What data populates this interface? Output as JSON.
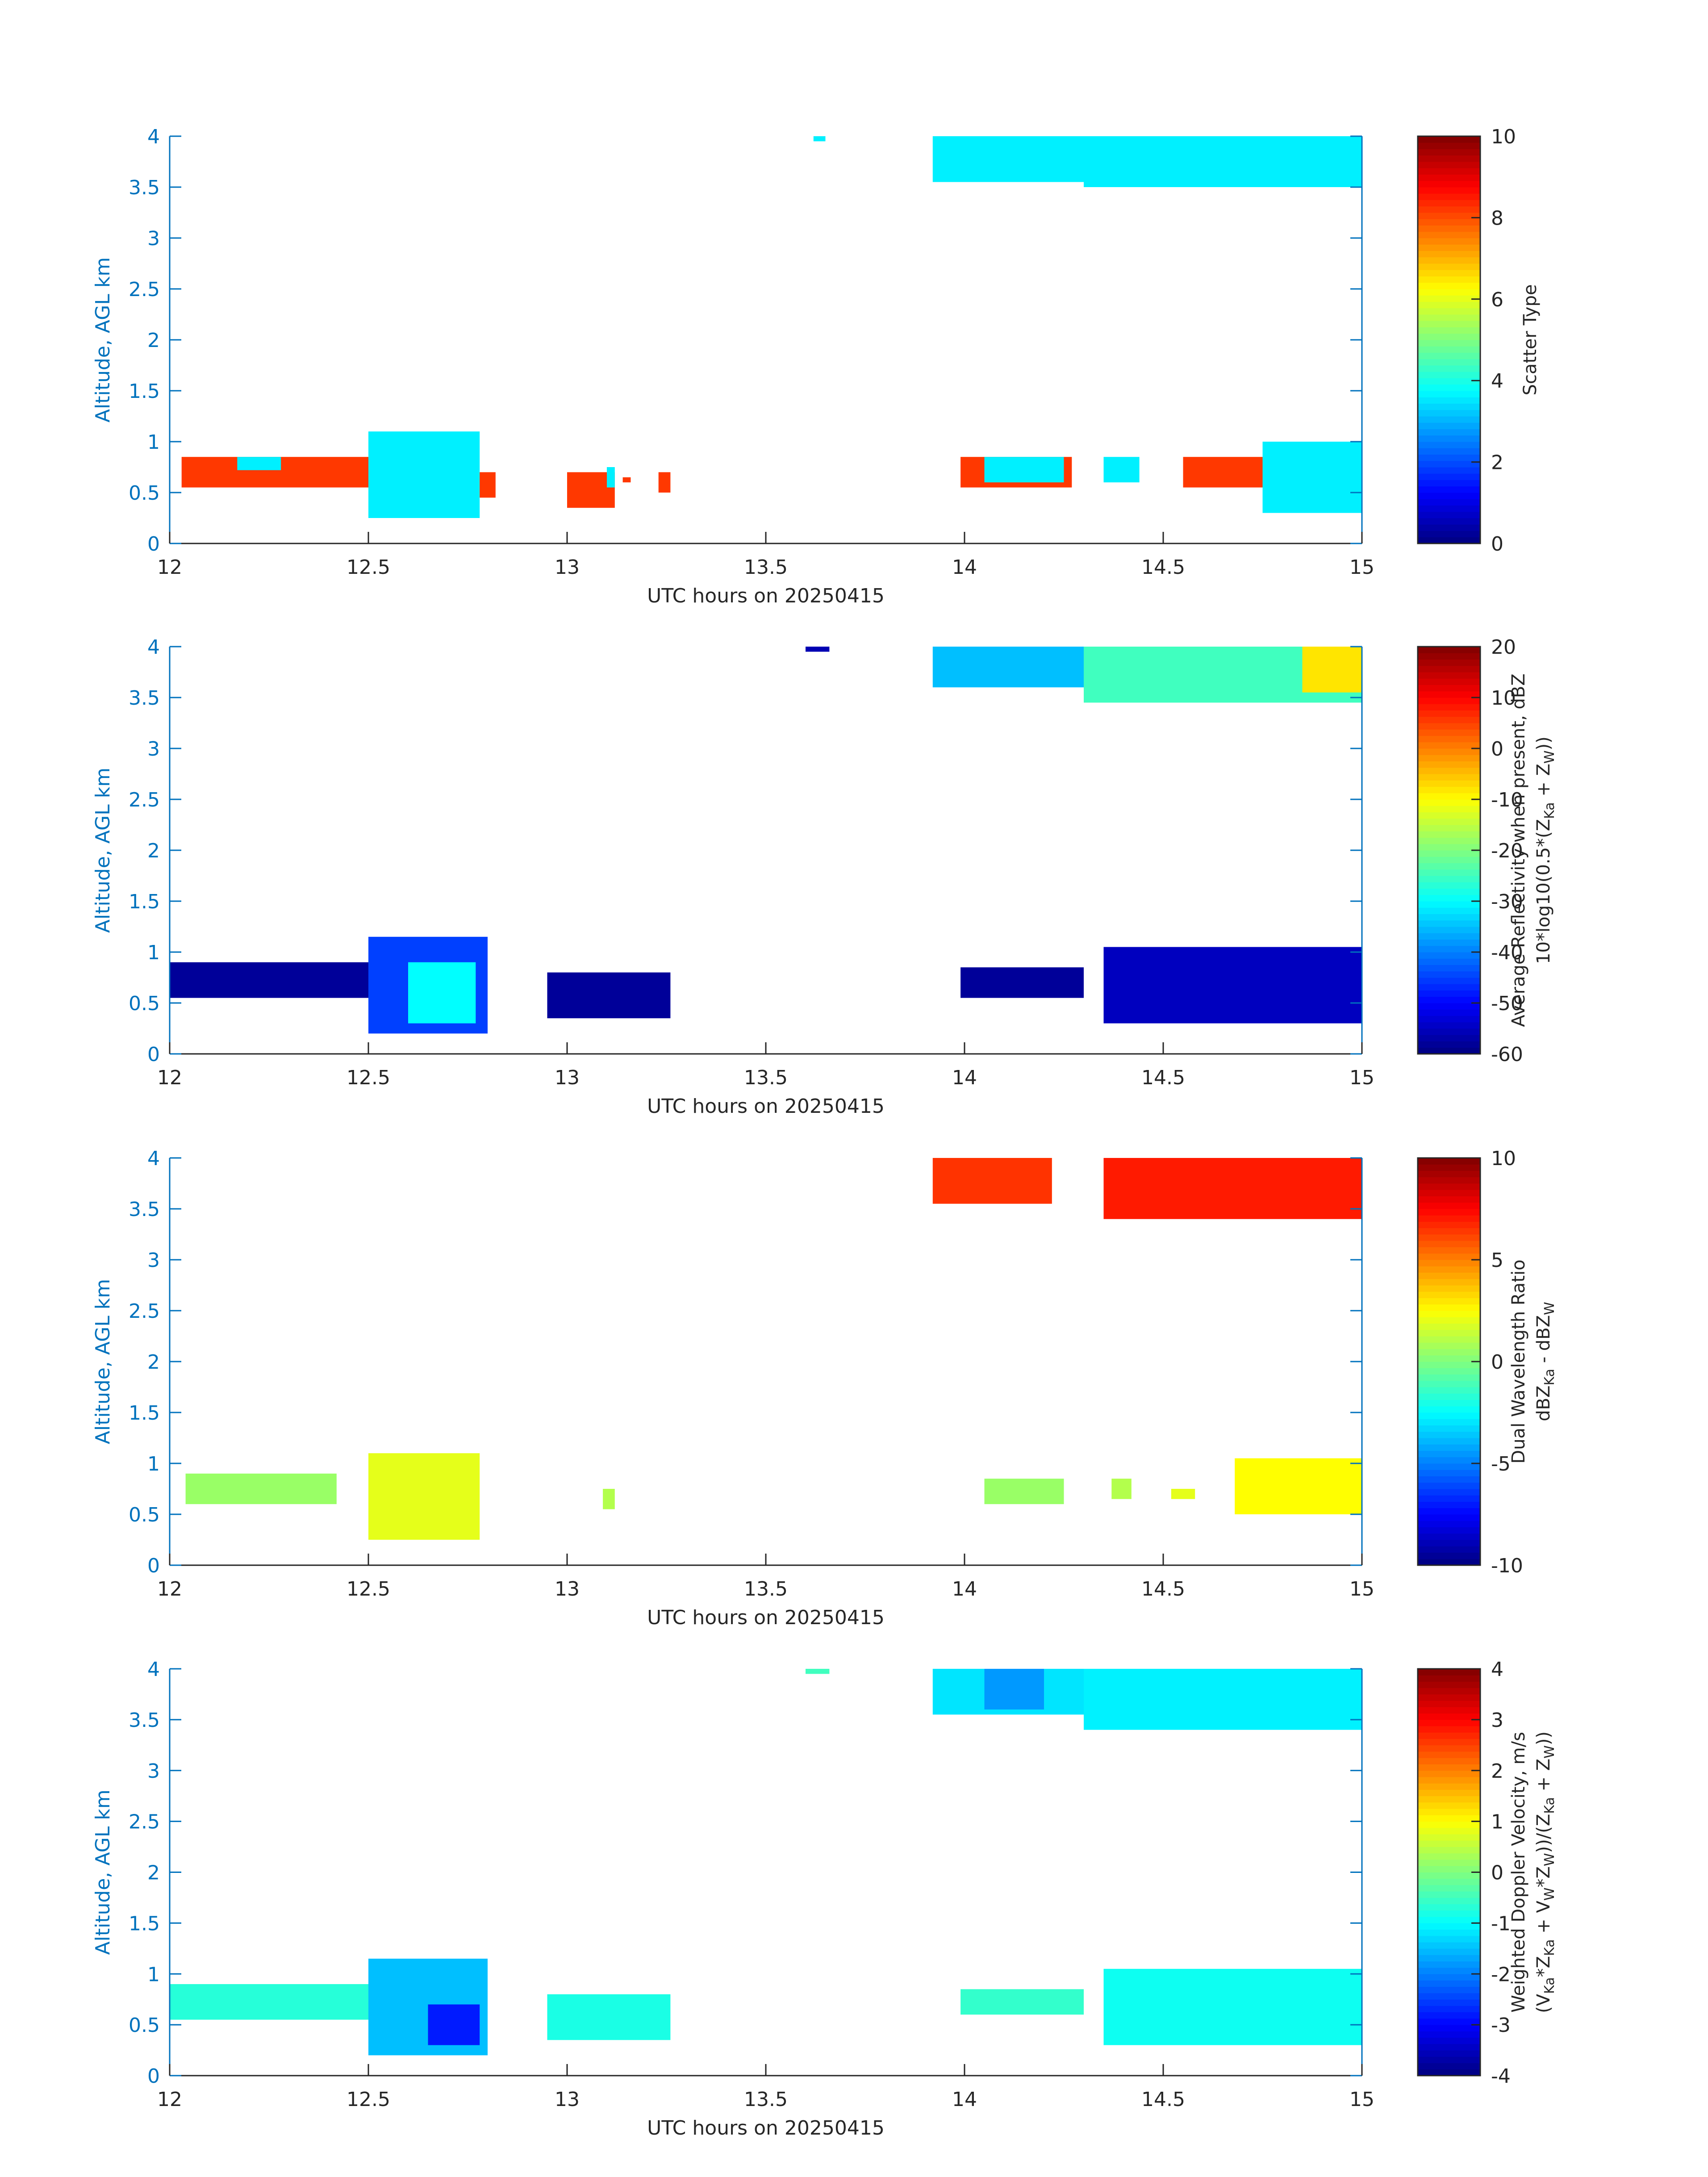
{
  "chart_data": [
    {
      "type": "heatmap",
      "xlabel": "UTC hours on 20250415",
      "ylabel": "Altitude, AGL km",
      "xlim": [
        12,
        15
      ],
      "ylim": [
        0,
        4
      ],
      "xticks": [
        12,
        12.5,
        13,
        13.5,
        14,
        14.5,
        15
      ],
      "yticks": [
        0,
        0.5,
        1,
        1.5,
        2,
        2.5,
        3,
        3.5,
        4
      ],
      "colorbar": {
        "label_lines": [
          "Scatter Type"
        ],
        "range": [
          0,
          10
        ],
        "ticks": [
          0,
          2,
          4,
          6,
          8,
          10
        ]
      },
      "colormap": "jet",
      "regions": [
        {
          "x": [
            13.62,
            13.65
          ],
          "y": [
            3.95,
            4.0
          ],
          "value": 3.6
        },
        {
          "x": [
            13.92,
            14.3
          ],
          "y": [
            3.55,
            4.0
          ],
          "value": 3.6
        },
        {
          "x": [
            14.3,
            15.0
          ],
          "y": [
            3.5,
            4.0
          ],
          "value": 3.6
        },
        {
          "x": [
            12.03,
            12.5
          ],
          "y": [
            0.55,
            0.85
          ],
          "value": 8.2
        },
        {
          "x": [
            12.17,
            12.28
          ],
          "y": [
            0.72,
            0.85
          ],
          "value": 3.6
        },
        {
          "x": [
            12.5,
            12.78
          ],
          "y": [
            0.25,
            1.1
          ],
          "value": 3.6
        },
        {
          "x": [
            12.78,
            12.82
          ],
          "y": [
            0.45,
            0.7
          ],
          "value": 8.2
        },
        {
          "x": [
            13.0,
            13.12
          ],
          "y": [
            0.35,
            0.7
          ],
          "value": 8.2
        },
        {
          "x": [
            13.1,
            13.12
          ],
          "y": [
            0.55,
            0.75
          ],
          "value": 3.6
        },
        {
          "x": [
            13.14,
            13.16
          ],
          "y": [
            0.6,
            0.65
          ],
          "value": 8.2
        },
        {
          "x": [
            13.23,
            13.26
          ],
          "y": [
            0.5,
            0.7
          ],
          "value": 8.2
        },
        {
          "x": [
            13.99,
            14.27
          ],
          "y": [
            0.55,
            0.85
          ],
          "value": 8.2
        },
        {
          "x": [
            14.05,
            14.25
          ],
          "y": [
            0.6,
            0.85
          ],
          "value": 3.6
        },
        {
          "x": [
            14.35,
            14.44
          ],
          "y": [
            0.6,
            0.85
          ],
          "value": 3.6
        },
        {
          "x": [
            14.55,
            14.75
          ],
          "y": [
            0.55,
            0.85
          ],
          "value": 8.2
        },
        {
          "x": [
            14.75,
            15.0
          ],
          "y": [
            0.3,
            1.0
          ],
          "value": 3.6
        }
      ]
    },
    {
      "type": "heatmap",
      "xlabel": "UTC hours on 20250415",
      "ylabel": "Altitude, AGL km",
      "xlim": [
        12,
        15
      ],
      "ylim": [
        0,
        4
      ],
      "xticks": [
        12,
        12.5,
        13,
        13.5,
        14,
        14.5,
        15
      ],
      "yticks": [
        0,
        0.5,
        1,
        1.5,
        2,
        2.5,
        3,
        3.5,
        4
      ],
      "colorbar": {
        "label_lines": [
          "Average Reflectivity when present, dBZ",
          "10*log10(0.5*(Z",
          "Ka",
          " + Z",
          "W",
          "))"
        ],
        "range": [
          -60,
          20
        ],
        "ticks": [
          -60,
          -50,
          -40,
          -30,
          -20,
          -10,
          0,
          10,
          20
        ]
      },
      "colormap": "jet",
      "regions": [
        {
          "x": [
            13.6,
            13.66
          ],
          "y": [
            3.95,
            4.0
          ],
          "value": -56
        },
        {
          "x": [
            13.92,
            14.3
          ],
          "y": [
            3.6,
            4.0
          ],
          "value": -35
        },
        {
          "x": [
            14.3,
            15.0
          ],
          "y": [
            3.45,
            4.0
          ],
          "value": -25
        },
        {
          "x": [
            14.85,
            15.0
          ],
          "y": [
            3.55,
            4.0
          ],
          "value": -8
        },
        {
          "x": [
            12.0,
            12.5
          ],
          "y": [
            0.55,
            0.9
          ],
          "value": -58
        },
        {
          "x": [
            12.5,
            12.8
          ],
          "y": [
            0.2,
            1.15
          ],
          "value": -45
        },
        {
          "x": [
            12.6,
            12.77
          ],
          "y": [
            0.3,
            0.9
          ],
          "value": -30
        },
        {
          "x": [
            12.95,
            13.26
          ],
          "y": [
            0.35,
            0.8
          ],
          "value": -58
        },
        {
          "x": [
            13.99,
            14.3
          ],
          "y": [
            0.55,
            0.85
          ],
          "value": -58
        },
        {
          "x": [
            14.35,
            15.0
          ],
          "y": [
            0.3,
            1.05
          ],
          "value": -55
        }
      ]
    },
    {
      "type": "heatmap",
      "xlabel": "UTC hours on 20250415",
      "ylabel": "Altitude, AGL km",
      "xlim": [
        12,
        15
      ],
      "ylim": [
        0,
        4
      ],
      "xticks": [
        12,
        12.5,
        13,
        13.5,
        14,
        14.5,
        15
      ],
      "yticks": [
        0,
        0.5,
        1,
        1.5,
        2,
        2.5,
        3,
        3.5,
        4
      ],
      "colorbar": {
        "label_lines": [
          "Dual Wavelength Ratio",
          "dBZ",
          "Ka",
          " - dBZ",
          "W"
        ],
        "range": [
          -10,
          10
        ],
        "ticks": [
          -10,
          -5,
          0,
          5,
          10
        ]
      },
      "colormap": "jet",
      "regions": [
        {
          "x": [
            13.92,
            14.22
          ],
          "y": [
            3.55,
            4.0
          ],
          "value": 6.5
        },
        {
          "x": [
            14.35,
            15.0
          ],
          "y": [
            3.4,
            4.0
          ],
          "value": 7.0
        },
        {
          "x": [
            12.04,
            12.42
          ],
          "y": [
            0.6,
            0.9
          ],
          "value": 0.5
        },
        {
          "x": [
            12.5,
            12.78
          ],
          "y": [
            0.25,
            1.1
          ],
          "value": 2.0
        },
        {
          "x": [
            13.09,
            13.12
          ],
          "y": [
            0.55,
            0.75
          ],
          "value": 1.0
        },
        {
          "x": [
            14.05,
            14.25
          ],
          "y": [
            0.6,
            0.85
          ],
          "value": 0.5
        },
        {
          "x": [
            14.37,
            14.42
          ],
          "y": [
            0.65,
            0.85
          ],
          "value": 1.0
        },
        {
          "x": [
            14.52,
            14.58
          ],
          "y": [
            0.65,
            0.75
          ],
          "value": 2.0
        },
        {
          "x": [
            14.68,
            15.0
          ],
          "y": [
            0.5,
            1.05
          ],
          "value": 2.5
        }
      ]
    },
    {
      "type": "heatmap",
      "xlabel": "UTC hours on 20250415",
      "ylabel": "Altitude, AGL km",
      "xlim": [
        12,
        15
      ],
      "ylim": [
        0,
        4
      ],
      "xticks": [
        12,
        12.5,
        13,
        13.5,
        14,
        14.5,
        15
      ],
      "yticks": [
        0,
        0.5,
        1,
        1.5,
        2,
        2.5,
        3,
        3.5,
        4
      ],
      "colorbar": {
        "label_lines": [
          "Weighted Doppler Velocity, m/s",
          "(V",
          "Ka",
          "*Z",
          "Ka",
          " + V",
          "W",
          "*Z",
          "W",
          "))/(Z",
          "Ka",
          " + Z",
          "W",
          "))"
        ],
        "range": [
          -4,
          4
        ],
        "ticks": [
          -4,
          -3,
          -2,
          -1,
          0,
          1,
          2,
          3,
          4
        ]
      },
      "colormap": "jet",
      "regions": [
        {
          "x": [
            13.6,
            13.66
          ],
          "y": [
            3.95,
            4.0
          ],
          "value": -0.5
        },
        {
          "x": [
            13.92,
            14.3
          ],
          "y": [
            3.55,
            4.0
          ],
          "value": -1.2
        },
        {
          "x": [
            14.05,
            14.2
          ],
          "y": [
            3.6,
            4.0
          ],
          "value": -1.8
        },
        {
          "x": [
            14.3,
            15.0
          ],
          "y": [
            3.4,
            4.0
          ],
          "value": -1.1
        },
        {
          "x": [
            12.0,
            12.5
          ],
          "y": [
            0.55,
            0.9
          ],
          "value": -0.7
        },
        {
          "x": [
            12.5,
            12.8
          ],
          "y": [
            0.2,
            1.15
          ],
          "value": -1.5
        },
        {
          "x": [
            12.65,
            12.78
          ],
          "y": [
            0.3,
            0.7
          ],
          "value": -2.8
        },
        {
          "x": [
            12.95,
            13.26
          ],
          "y": [
            0.35,
            0.8
          ],
          "value": -0.8
        },
        {
          "x": [
            13.99,
            14.3
          ],
          "y": [
            0.6,
            0.85
          ],
          "value": -0.6
        },
        {
          "x": [
            14.35,
            15.0
          ],
          "y": [
            0.3,
            1.05
          ],
          "value": -0.9
        }
      ]
    }
  ]
}
